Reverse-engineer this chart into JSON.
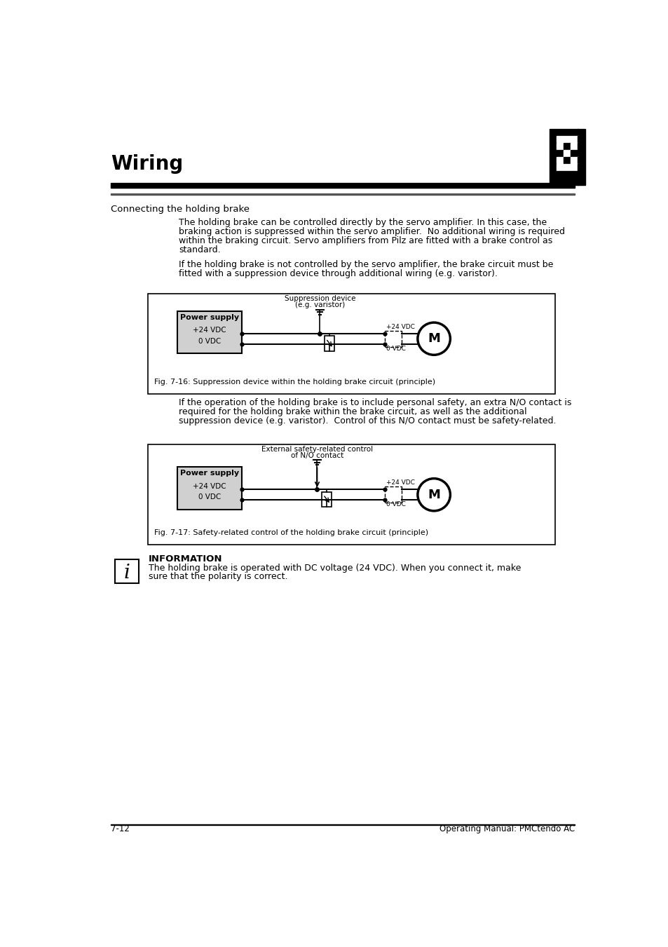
{
  "page_bg": "#ffffff",
  "header_title": "Wiring",
  "section_heading": "Connecting the holding brake",
  "para1_lines": [
    "The holding brake can be controlled directly by the servo amplifier. In this case, the",
    "braking action is suppressed within the servo amplifier.  No additional wiring is required",
    "within the braking circuit. Servo amplifiers from Pilz are fitted with a brake control as",
    "standard."
  ],
  "para2_lines": [
    "If the holding brake is not controlled by the servo amplifier, the brake circuit must be",
    "fitted with a suppression device through additional wiring (e.g. varistor)."
  ],
  "fig1_caption": "Fig. 7-16: Suppression device within the holding brake circuit (principle)",
  "para3_lines": [
    "If the operation of the holding brake is to include personal safety, an extra N/O contact is",
    "required for the holding brake within the brake circuit, as well as the additional",
    "suppression device (e.g. varistor).  Control of this N/O contact must be safety-related."
  ],
  "fig2_caption": "Fig. 7-17: Safety-related control of the holding brake circuit (principle)",
  "info_title": "INFORMATION",
  "info_lines": [
    "The holding brake is operated with DC voltage (24 VDC). When you connect it, make",
    "sure that the polarity is correct."
  ],
  "footer_left": "7-12",
  "footer_right": "Operating Manual: PMCtendo AC"
}
